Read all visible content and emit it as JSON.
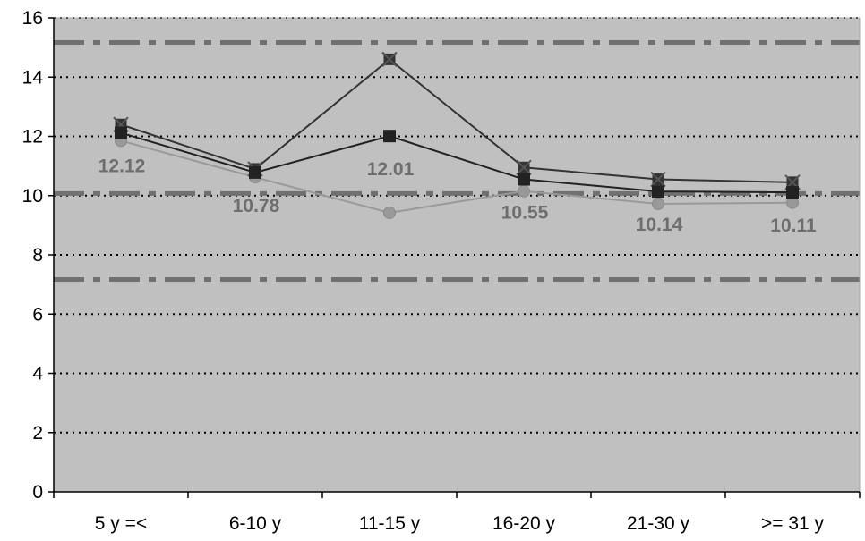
{
  "chart_data": {
    "type": "line",
    "categories": [
      "5 y =<",
      "6-10 y",
      "11-15 y",
      "16-20 y",
      "21-30 y",
      ">= 31 y"
    ],
    "ylim": [
      0,
      16
    ],
    "yticks": [
      0,
      2,
      4,
      6,
      8,
      10,
      12,
      14,
      16
    ],
    "grid": true,
    "legend": "none",
    "plot_background": "#c0c0c0",
    "series": [
      {
        "marker": "star",
        "color": "#333333",
        "values": [
          12.4,
          10.9,
          14.6,
          10.95,
          10.55,
          10.45
        ]
      },
      {
        "marker": "square",
        "color": "#222222",
        "values": [
          12.12,
          10.78,
          12.01,
          10.55,
          10.14,
          10.11
        ]
      },
      {
        "marker": "circle",
        "color": "#999999",
        "values": [
          11.85,
          10.62,
          9.42,
          10.15,
          9.72,
          9.76
        ]
      }
    ],
    "data_labels": [
      {
        "category": "5 y =<",
        "text": "12.12"
      },
      {
        "category": "6-10 y",
        "text": "10.78"
      },
      {
        "category": "11-15 y",
        "text": "12.01"
      },
      {
        "category": "16-20 y",
        "text": "10.55"
      },
      {
        "category": "21-30 y",
        "text": "10.14"
      },
      {
        "category": ">= 31 y",
        "text": "10.11"
      }
    ],
    "reference_lines": [
      {
        "value": 15.17,
        "style": "dash-dot",
        "color": "#707070"
      },
      {
        "value": 10.07,
        "style": "dash-dot",
        "color": "#707070"
      },
      {
        "value": 7.17,
        "style": "dash-dot",
        "color": "#707070"
      }
    ]
  }
}
